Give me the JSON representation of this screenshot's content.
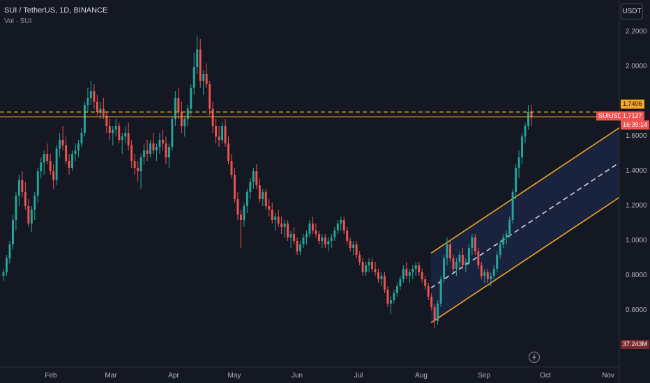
{
  "header": {
    "title": "SUI / TetherUS, 1D, BINANCE",
    "volume_label": "Vol · SUI"
  },
  "currency_button": "USDT",
  "price_tags": {
    "alert_level": "1.7406",
    "symbol": "SUIUSDT",
    "last_price": "1.7127",
    "countdown": "16:39:14",
    "volume": "37.243M"
  },
  "colors": {
    "background": "#141823",
    "up": "#26a69a",
    "down": "#ef5350",
    "channel": "#f5a623",
    "channel_fill": "#1a2540",
    "midline": "#d1d4dc",
    "alert_line": "#f5a623"
  },
  "icons": [
    "lightning-icon"
  ],
  "chart_data": {
    "type": "candlestick",
    "title": "SUI / TetherUS, 1D, BINANCE",
    "xlabel": "",
    "ylabel": "",
    "x_tick_labels": [
      "Feb",
      "Mar",
      "Apr",
      "May",
      "Jun",
      "Jul",
      "Aug",
      "Sep",
      "Oct",
      "Nov"
    ],
    "y_tick_labels": [
      "0.6000",
      "0.8000",
      "1.0000",
      "1.2000",
      "1.4000",
      "1.6000",
      "2.0000",
      "2.2000"
    ],
    "ylim": [
      0.45,
      2.3
    ],
    "grid": false,
    "horizontal_lines": [
      {
        "value": 1.7406,
        "style": "dashed",
        "color": "#f5a623"
      },
      {
        "value": 1.7127,
        "style": "solid",
        "color": "#f5a623"
      }
    ],
    "channel": {
      "start_date": "2024-08-05",
      "end_date": "2024-11-20",
      "upper": [
        0.93,
        1.65
      ],
      "middle": [
        0.73,
        1.45
      ],
      "lower": [
        0.53,
        1.25
      ]
    },
    "series": [
      {
        "values": [
          [
            0.8,
            0.84,
            0.77,
            0.82
          ],
          [
            0.82,
            0.92,
            0.8,
            0.9
          ],
          [
            0.9,
            1.0,
            0.87,
            0.98
          ],
          [
            0.98,
            1.15,
            0.95,
            1.12
          ],
          [
            1.12,
            1.28,
            1.06,
            1.26
          ],
          [
            1.26,
            1.38,
            1.2,
            1.35
          ],
          [
            1.35,
            1.4,
            1.25,
            1.28
          ],
          [
            1.28,
            1.34,
            1.18,
            1.2
          ],
          [
            1.2,
            1.24,
            1.08,
            1.1
          ],
          [
            1.1,
            1.2,
            1.05,
            1.18
          ],
          [
            1.18,
            1.28,
            1.12,
            1.26
          ],
          [
            1.26,
            1.42,
            1.22,
            1.4
          ],
          [
            1.4,
            1.48,
            1.36,
            1.45
          ],
          [
            1.45,
            1.52,
            1.38,
            1.5
          ],
          [
            1.5,
            1.56,
            1.44,
            1.46
          ],
          [
            1.46,
            1.5,
            1.38,
            1.4
          ],
          [
            1.4,
            1.44,
            1.3,
            1.35
          ],
          [
            1.35,
            1.55,
            1.32,
            1.53
          ],
          [
            1.53,
            1.62,
            1.48,
            1.58
          ],
          [
            1.58,
            1.66,
            1.52,
            1.55
          ],
          [
            1.55,
            1.6,
            1.44,
            1.46
          ],
          [
            1.46,
            1.5,
            1.38,
            1.42
          ],
          [
            1.42,
            1.52,
            1.4,
            1.5
          ],
          [
            1.5,
            1.56,
            1.46,
            1.52
          ],
          [
            1.52,
            1.58,
            1.48,
            1.56
          ],
          [
            1.56,
            1.65,
            1.54,
            1.62
          ],
          [
            1.62,
            1.8,
            1.6,
            1.78
          ],
          [
            1.78,
            1.88,
            1.74,
            1.82
          ],
          [
            1.82,
            1.92,
            1.78,
            1.86
          ],
          [
            1.86,
            1.9,
            1.76,
            1.8
          ],
          [
            1.8,
            1.84,
            1.72,
            1.74
          ],
          [
            1.74,
            1.8,
            1.7,
            1.76
          ],
          [
            1.76,
            1.82,
            1.7,
            1.72
          ],
          [
            1.72,
            1.74,
            1.62,
            1.66
          ],
          [
            1.66,
            1.7,
            1.58,
            1.62
          ],
          [
            1.62,
            1.66,
            1.55,
            1.64
          ],
          [
            1.64,
            1.7,
            1.6,
            1.66
          ],
          [
            1.66,
            1.68,
            1.56,
            1.58
          ],
          [
            1.58,
            1.62,
            1.5,
            1.6
          ],
          [
            1.6,
            1.66,
            1.56,
            1.62
          ],
          [
            1.62,
            1.68,
            1.52,
            1.55
          ],
          [
            1.55,
            1.58,
            1.42,
            1.46
          ],
          [
            1.46,
            1.5,
            1.38,
            1.42
          ],
          [
            1.42,
            1.46,
            1.34,
            1.4
          ],
          [
            1.4,
            1.5,
            1.3,
            1.48
          ],
          [
            1.48,
            1.56,
            1.44,
            1.52
          ],
          [
            1.52,
            1.58,
            1.46,
            1.5
          ],
          [
            1.5,
            1.58,
            1.48,
            1.56
          ],
          [
            1.56,
            1.62,
            1.5,
            1.52
          ],
          [
            1.52,
            1.56,
            1.46,
            1.54
          ],
          [
            1.54,
            1.62,
            1.5,
            1.58
          ],
          [
            1.58,
            1.64,
            1.52,
            1.56
          ],
          [
            1.56,
            1.6,
            1.44,
            1.48
          ],
          [
            1.48,
            1.56,
            1.42,
            1.54
          ],
          [
            1.54,
            1.72,
            1.52,
            1.7
          ],
          [
            1.7,
            1.86,
            1.66,
            1.82
          ],
          [
            1.82,
            1.88,
            1.7,
            1.74
          ],
          [
            1.74,
            1.8,
            1.62,
            1.66
          ],
          [
            1.66,
            1.72,
            1.6,
            1.7
          ],
          [
            1.7,
            1.78,
            1.66,
            1.76
          ],
          [
            1.76,
            1.9,
            1.72,
            1.88
          ],
          [
            1.88,
            2.08,
            1.84,
            2.0
          ],
          [
            2.0,
            2.18,
            1.96,
            2.1
          ],
          [
            2.1,
            2.16,
            1.88,
            1.92
          ],
          [
            1.92,
            1.98,
            1.84,
            1.96
          ],
          [
            1.96,
            2.02,
            1.88,
            1.9
          ],
          [
            1.9,
            1.92,
            1.72,
            1.76
          ],
          [
            1.76,
            1.8,
            1.62,
            1.66
          ],
          [
            1.66,
            1.7,
            1.56,
            1.6
          ],
          [
            1.6,
            1.66,
            1.54,
            1.58
          ],
          [
            1.58,
            1.68,
            1.56,
            1.66
          ],
          [
            1.66,
            1.7,
            1.54,
            1.56
          ],
          [
            1.56,
            1.6,
            1.44,
            1.46
          ],
          [
            1.46,
            1.5,
            1.36,
            1.38
          ],
          [
            1.38,
            1.42,
            1.22,
            1.24
          ],
          [
            1.24,
            1.28,
            1.12,
            1.15
          ],
          [
            1.15,
            1.18,
            0.96,
            1.12
          ],
          [
            1.12,
            1.22,
            1.08,
            1.2
          ],
          [
            1.2,
            1.3,
            1.16,
            1.28
          ],
          [
            1.28,
            1.36,
            1.24,
            1.34
          ],
          [
            1.34,
            1.42,
            1.3,
            1.4
          ],
          [
            1.4,
            1.44,
            1.3,
            1.32
          ],
          [
            1.32,
            1.36,
            1.22,
            1.24
          ],
          [
            1.24,
            1.3,
            1.2,
            1.28
          ],
          [
            1.28,
            1.3,
            1.18,
            1.2
          ],
          [
            1.2,
            1.24,
            1.14,
            1.18
          ],
          [
            1.18,
            1.22,
            1.1,
            1.12
          ],
          [
            1.12,
            1.16,
            1.06,
            1.14
          ],
          [
            1.14,
            1.18,
            1.08,
            1.1
          ],
          [
            1.1,
            1.14,
            1.04,
            1.08
          ],
          [
            1.08,
            1.12,
            1.02,
            1.1
          ],
          [
            1.1,
            1.12,
            1.0,
            1.02
          ],
          [
            1.02,
            1.06,
            0.96,
            1.04
          ],
          [
            1.04,
            1.08,
            0.98,
            1.0
          ],
          [
            1.0,
            1.02,
            0.92,
            0.94
          ],
          [
            0.94,
            1.0,
            0.92,
            0.98
          ],
          [
            0.98,
            1.04,
            0.96,
            1.02
          ],
          [
            1.02,
            1.06,
            0.98,
            1.04
          ],
          [
            1.04,
            1.12,
            1.02,
            1.1
          ],
          [
            1.1,
            1.14,
            1.04,
            1.06
          ],
          [
            1.06,
            1.1,
            1.02,
            1.04
          ],
          [
            1.04,
            1.06,
            0.98,
            1.0
          ],
          [
            1.0,
            1.04,
            0.96,
            1.02
          ],
          [
            1.02,
            1.04,
            0.96,
            0.98
          ],
          [
            0.98,
            1.02,
            0.94,
            1.0
          ],
          [
            1.0,
            1.04,
            0.96,
            1.02
          ],
          [
            1.02,
            1.08,
            1.0,
            1.06
          ],
          [
            1.06,
            1.12,
            1.04,
            1.1
          ],
          [
            1.1,
            1.14,
            1.06,
            1.12
          ],
          [
            1.12,
            1.14,
            1.04,
            1.06
          ],
          [
            1.06,
            1.08,
            0.98,
            1.0
          ],
          [
            1.0,
            1.02,
            0.94,
            0.96
          ],
          [
            0.96,
            1.0,
            0.92,
            0.98
          ],
          [
            0.98,
            1.0,
            0.9,
            0.92
          ],
          [
            0.92,
            0.94,
            0.86,
            0.88
          ],
          [
            0.88,
            0.9,
            0.8,
            0.82
          ],
          [
            0.82,
            0.88,
            0.8,
            0.86
          ],
          [
            0.86,
            0.9,
            0.82,
            0.88
          ],
          [
            0.88,
            0.9,
            0.82,
            0.84
          ],
          [
            0.84,
            0.88,
            0.8,
            0.82
          ],
          [
            0.82,
            0.84,
            0.76,
            0.78
          ],
          [
            0.78,
            0.82,
            0.74,
            0.8
          ],
          [
            0.8,
            0.82,
            0.7,
            0.72
          ],
          [
            0.72,
            0.74,
            0.62,
            0.64
          ],
          [
            0.64,
            0.68,
            0.58,
            0.66
          ],
          [
            0.66,
            0.72,
            0.64,
            0.7
          ],
          [
            0.7,
            0.76,
            0.68,
            0.74
          ],
          [
            0.74,
            0.8,
            0.72,
            0.78
          ],
          [
            0.78,
            0.86,
            0.76,
            0.84
          ],
          [
            0.84,
            0.88,
            0.78,
            0.8
          ],
          [
            0.8,
            0.84,
            0.76,
            0.82
          ],
          [
            0.82,
            0.86,
            0.78,
            0.84
          ],
          [
            0.84,
            0.88,
            0.8,
            0.86
          ],
          [
            0.86,
            0.88,
            0.8,
            0.82
          ],
          [
            0.82,
            0.84,
            0.76,
            0.78
          ],
          [
            0.78,
            0.8,
            0.72,
            0.74
          ],
          [
            0.74,
            0.76,
            0.66,
            0.68
          ],
          [
            0.68,
            0.7,
            0.6,
            0.62
          ],
          [
            0.62,
            0.64,
            0.5,
            0.54
          ],
          [
            0.54,
            0.66,
            0.52,
            0.64
          ],
          [
            0.64,
            0.8,
            0.62,
            0.78
          ],
          [
            0.78,
            0.92,
            0.76,
            0.9
          ],
          [
            0.9,
            1.02,
            0.86,
            0.98
          ],
          [
            0.98,
            1.0,
            0.88,
            0.9
          ],
          [
            0.9,
            0.92,
            0.82,
            0.84
          ],
          [
            0.84,
            0.9,
            0.8,
            0.88
          ],
          [
            0.88,
            0.94,
            0.84,
            0.92
          ],
          [
            0.92,
            0.96,
            0.84,
            0.86
          ],
          [
            0.86,
            0.9,
            0.82,
            0.88
          ],
          [
            0.88,
            0.98,
            0.86,
            0.96
          ],
          [
            0.96,
            1.04,
            0.92,
            1.02
          ],
          [
            1.02,
            1.04,
            0.92,
            0.94
          ],
          [
            0.94,
            0.96,
            0.84,
            0.86
          ],
          [
            0.86,
            0.88,
            0.78,
            0.8
          ],
          [
            0.8,
            0.84,
            0.76,
            0.82
          ],
          [
            0.82,
            0.84,
            0.76,
            0.78
          ],
          [
            0.78,
            0.82,
            0.74,
            0.8
          ],
          [
            0.8,
            0.86,
            0.78,
            0.84
          ],
          [
            0.84,
            0.94,
            0.82,
            0.92
          ],
          [
            0.92,
            1.0,
            0.9,
            0.98
          ],
          [
            0.98,
            1.04,
            0.96,
            1.02
          ],
          [
            1.02,
            1.06,
            0.98,
            1.04
          ],
          [
            1.04,
            1.14,
            1.02,
            1.12
          ],
          [
            1.12,
            1.3,
            1.1,
            1.28
          ],
          [
            1.28,
            1.44,
            1.24,
            1.42
          ],
          [
            1.42,
            1.52,
            1.36,
            1.48
          ],
          [
            1.48,
            1.62,
            1.44,
            1.6
          ],
          [
            1.6,
            1.68,
            1.56,
            1.66
          ],
          [
            1.66,
            1.78,
            1.64,
            1.74
          ],
          [
            1.74,
            1.78,
            1.66,
            1.71
          ]
        ]
      }
    ]
  }
}
